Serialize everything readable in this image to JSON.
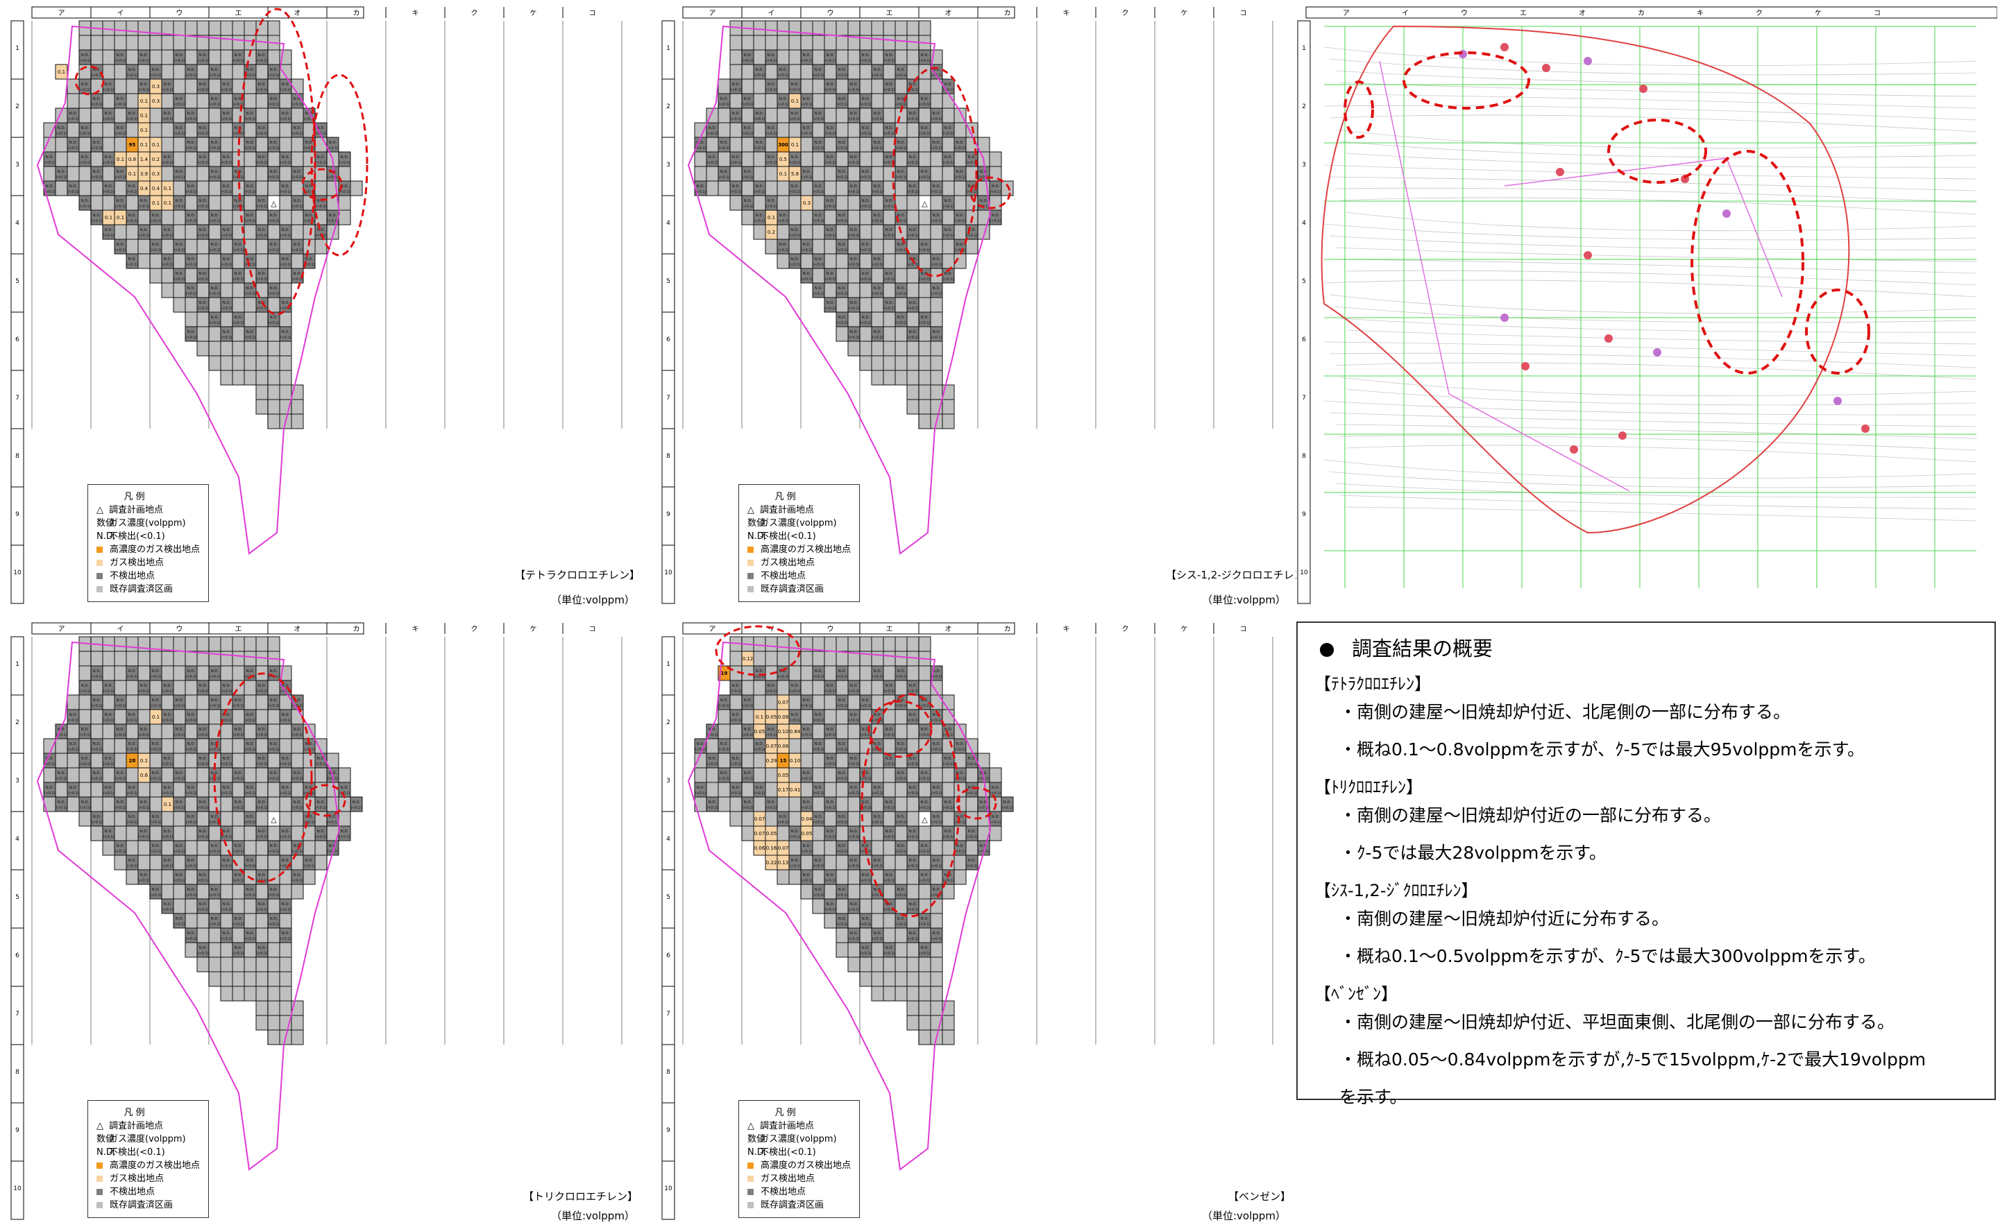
{
  "columns": [
    "ア",
    "イ",
    "ウ",
    "エ",
    "オ",
    "カ",
    "キ",
    "ク",
    "ケ",
    "コ"
  ],
  "rows": [
    "1",
    "2",
    "3",
    "4",
    "5",
    "6",
    "7",
    "8",
    "9",
    "10"
  ],
  "legend": {
    "title": "凡 例",
    "items": [
      {
        "sym": "△",
        "label": "調査計画地点"
      },
      {
        "sym": "数値",
        "label": "ガス濃度(volppm)"
      },
      {
        "sym": "N.D.",
        "label": "不検出(<0.1)"
      },
      {
        "color": "#f39a1e",
        "label": "高濃度のガス検出地点"
      },
      {
        "color": "#f8d4a4",
        "label": "ガス検出地点"
      },
      {
        "color": "#7f7f7f",
        "label": "不検出地点"
      },
      {
        "color": "#bfbfbf",
        "label": "既存調査済区画"
      }
    ]
  },
  "unit": "（単位:volppm）",
  "cell_labels": {
    "nd": "N.D.",
    "nd_sub": "(<0.1)",
    "nd_sub2": "(<0.01)"
  },
  "survey_point_symbol": "△",
  "maps": [
    {
      "id": "tetrachloroethylene",
      "title": "【テトラクロロエチレン】",
      "detections": [
        {
          "col": 8,
          "row": 8,
          "value": "95",
          "high": true
        },
        {
          "col": 2,
          "row": 3,
          "value": "0.1"
        },
        {
          "col": 9,
          "row": 5,
          "value": "0.1"
        },
        {
          "col": 9,
          "row": 6,
          "value": "0.1"
        },
        {
          "col": 9,
          "row": 7,
          "value": "0.1"
        },
        {
          "col": 9,
          "row": 8,
          "value": "0.1"
        },
        {
          "col": 8,
          "row": 9,
          "value": "0.8"
        },
        {
          "col": 8,
          "row": 10,
          "value": "0.1"
        },
        {
          "col": 9,
          "row": 10,
          "value": "0.1"
        },
        {
          "col": 7,
          "row": 9,
          "value": "0.1"
        },
        {
          "col": 9,
          "row": 9,
          "value": "1.4"
        },
        {
          "col": 9,
          "row": 10,
          "value": "3.9"
        },
        {
          "col": 10,
          "row": 10,
          "value": "0.3"
        },
        {
          "col": 10,
          "row": 8,
          "value": "0.1"
        },
        {
          "col": 10,
          "row": 9,
          "value": "0.2"
        },
        {
          "col": 9,
          "row": 11,
          "value": "0.4"
        },
        {
          "col": 10,
          "row": 11,
          "value": "0.4"
        },
        {
          "col": 10,
          "row": 12,
          "value": "0.1"
        },
        {
          "col": 11,
          "row": 11,
          "value": "0.1"
        },
        {
          "col": 11,
          "row": 12,
          "value": "0.1"
        },
        {
          "col": 10,
          "row": 5,
          "value": "0.3"
        },
        {
          "col": 10,
          "row": 4,
          "value": "0.3"
        },
        {
          "col": 7,
          "row": 13,
          "value": "0.1"
        },
        {
          "col": 6,
          "row": 13,
          "value": "0.1"
        }
      ]
    },
    {
      "id": "cis-12-dichloroethylene",
      "title": "【シス-1,2-ジクロロエチレン】",
      "detections": [
        {
          "col": 8,
          "row": 8,
          "value": "300",
          "high": true
        },
        {
          "col": 8,
          "row": 9,
          "value": "0.5"
        },
        {
          "col": 8,
          "row": 10,
          "value": "0.1"
        },
        {
          "col": 9,
          "row": 10,
          "value": "0.1"
        },
        {
          "col": 9,
          "row": 8,
          "value": "0.1"
        },
        {
          "col": 9,
          "row": 10,
          "value": "5.8"
        },
        {
          "col": 9,
          "row": 5,
          "value": "0.1"
        },
        {
          "col": 10,
          "row": 12,
          "value": "0.3"
        },
        {
          "col": 7,
          "row": 13,
          "value": "0.1"
        },
        {
          "col": 7,
          "row": 14,
          "value": "0.2"
        }
      ]
    },
    {
      "id": "trichloroethylene",
      "title": "【トリクロロエチレン】",
      "detections": [
        {
          "col": 8,
          "row": 8,
          "value": "28",
          "high": true
        },
        {
          "col": 9,
          "row": 8,
          "value": "0.1"
        },
        {
          "col": 9,
          "row": 9,
          "value": "0.6"
        },
        {
          "col": 10,
          "row": 5,
          "value": "0.1"
        },
        {
          "col": 11,
          "row": 11,
          "value": "0.1"
        }
      ]
    },
    {
      "id": "benzene",
      "title": "【ベンゼン】",
      "detections": [
        {
          "col": 3,
          "row": 2,
          "value": "19",
          "high": true
        },
        {
          "col": 8,
          "row": 8,
          "value": "15",
          "high": true
        },
        {
          "col": 5,
          "row": 1,
          "value": "0.12"
        },
        {
          "col": 8,
          "row": 4,
          "value": "0.07"
        },
        {
          "col": 8,
          "row": 5,
          "value": "0.08"
        },
        {
          "col": 8,
          "row": 6,
          "value": "0.10"
        },
        {
          "col": 7,
          "row": 5,
          "value": "0.05"
        },
        {
          "col": 6,
          "row": 5,
          "value": "0.1"
        },
        {
          "col": 6,
          "row": 6,
          "value": "0.05"
        },
        {
          "col": 9,
          "row": 6,
          "value": "0.84"
        },
        {
          "col": 7,
          "row": 7,
          "value": "0.07"
        },
        {
          "col": 8,
          "row": 7,
          "value": "0.06"
        },
        {
          "col": 7,
          "row": 8,
          "value": "0.29"
        },
        {
          "col": 9,
          "row": 8,
          "value": "0.10"
        },
        {
          "col": 8,
          "row": 9,
          "value": "0.05"
        },
        {
          "col": 8,
          "row": 10,
          "value": "0.10"
        },
        {
          "col": 9,
          "row": 10,
          "value": "0.05"
        },
        {
          "col": 8,
          "row": 10,
          "value": "0.17"
        },
        {
          "col": 9,
          "row": 10,
          "value": "0.41"
        },
        {
          "col": 6,
          "row": 12,
          "value": "0.07"
        },
        {
          "col": 6,
          "row": 13,
          "value": "0.07"
        },
        {
          "col": 7,
          "row": 13,
          "value": "0.05"
        },
        {
          "col": 7,
          "row": 14,
          "value": "0.16"
        },
        {
          "col": 8,
          "row": 14,
          "value": "0.07"
        },
        {
          "col": 6,
          "row": 14,
          "value": "0.06"
        },
        {
          "col": 7,
          "row": 15,
          "value": "0.22"
        },
        {
          "col": 8,
          "row": 15,
          "value": "0.13"
        },
        {
          "col": 10,
          "row": 12,
          "value": "0.04"
        },
        {
          "col": 10,
          "row": 13,
          "value": "0.05"
        }
      ]
    }
  ],
  "summary": {
    "title": "調査結果の概要",
    "sections": [
      {
        "heading": "【ﾃﾄﾗｸﾛﾛｴﾁﾚﾝ】",
        "lines": [
          "・南側の建屋～旧焼却炉付近、北尾側の一部に分布する。",
          "・概ね0.1～0.8volppmを示すが、ｸ-5では最大95volppmを示す。"
        ]
      },
      {
        "heading": "【ﾄﾘｸﾛﾛｴﾁﾚﾝ】",
        "lines": [
          "・南側の建屋～旧焼却炉付近の一部に分布する。",
          "・ｸ-5では最大28volppmを示す。"
        ]
      },
      {
        "heading": "【ｼｽ-1,2-ｼﾞｸﾛﾛｴﾁﾚﾝ】",
        "lines": [
          "・南側の建屋～旧焼却炉付近に分布する。",
          "・概ね0.1～0.5volppmを示すが、ｸ-5では最大300volppmを示す。"
        ]
      },
      {
        "heading": "【ﾍﾞﾝｾﾞﾝ】",
        "lines": [
          "・南側の建屋～旧焼却炉付近、平坦面東側、北尾側の一部に分布する。",
          "・概ね0.05～0.84volppmを示すが,ｸ-5で15volppm,ｹ-2で最大19volppm",
          "を示す。"
        ]
      }
    ]
  },
  "colors": {
    "grid_bg": "#bfbfbf",
    "nd_cell": "#7f7f7f",
    "high": "#f39a1e",
    "detected": "#f8d4a4",
    "boundary": "#e13ad6",
    "ellipse": "#e01010"
  }
}
